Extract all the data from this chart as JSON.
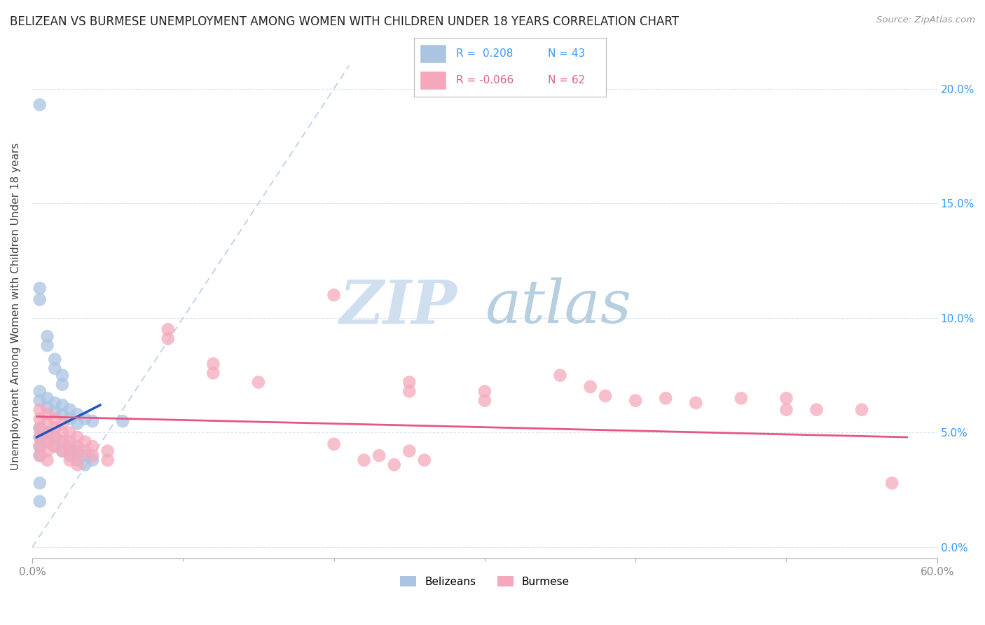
{
  "title": "BELIZEAN VS BURMESE UNEMPLOYMENT AMONG WOMEN WITH CHILDREN UNDER 18 YEARS CORRELATION CHART",
  "source": "Source: ZipAtlas.com",
  "ylabel": "Unemployment Among Women with Children Under 18 years",
  "xlim": [
    0,
    0.6
  ],
  "ylim": [
    -0.005,
    0.215
  ],
  "xticks": [
    0.0,
    0.6
  ],
  "xticklabels": [
    "0.0%",
    "60.0%"
  ],
  "yticks": [
    0.0,
    0.05,
    0.1,
    0.15,
    0.2
  ],
  "yticklabels": [
    "0.0%",
    "5.0%",
    "10.0%",
    "15.0%",
    "20.0%"
  ],
  "belizean_color": "#aac4e2",
  "burmese_color": "#f5a8bc",
  "belizean_line_color": "#2255bb",
  "burmese_line_color": "#e85580",
  "ref_line_color": "#b8cfe8",
  "watermark_zip_color": "#d0dff0",
  "watermark_atlas_color": "#b8cfe0",
  "legend_R1": "R =  0.208",
  "legend_N1": "N = 43",
  "legend_R2": "R = -0.066",
  "legend_N2": "N = 62",
  "belizean_points": [
    [
      0.005,
      0.193
    ],
    [
      0.005,
      0.113
    ],
    [
      0.005,
      0.108
    ],
    [
      0.01,
      0.092
    ],
    [
      0.01,
      0.088
    ],
    [
      0.015,
      0.082
    ],
    [
      0.015,
      0.078
    ],
    [
      0.02,
      0.075
    ],
    [
      0.02,
      0.071
    ],
    [
      0.005,
      0.068
    ],
    [
      0.005,
      0.064
    ],
    [
      0.01,
      0.065
    ],
    [
      0.01,
      0.061
    ],
    [
      0.015,
      0.063
    ],
    [
      0.015,
      0.059
    ],
    [
      0.02,
      0.062
    ],
    [
      0.02,
      0.058
    ],
    [
      0.025,
      0.06
    ],
    [
      0.025,
      0.056
    ],
    [
      0.03,
      0.058
    ],
    [
      0.03,
      0.054
    ],
    [
      0.035,
      0.056
    ],
    [
      0.04,
      0.055
    ],
    [
      0.005,
      0.052
    ],
    [
      0.005,
      0.048
    ],
    [
      0.005,
      0.044
    ],
    [
      0.005,
      0.04
    ],
    [
      0.01,
      0.05
    ],
    [
      0.01,
      0.046
    ],
    [
      0.015,
      0.048
    ],
    [
      0.015,
      0.044
    ],
    [
      0.02,
      0.046
    ],
    [
      0.02,
      0.042
    ],
    [
      0.025,
      0.044
    ],
    [
      0.025,
      0.04
    ],
    [
      0.03,
      0.042
    ],
    [
      0.03,
      0.038
    ],
    [
      0.035,
      0.04
    ],
    [
      0.035,
      0.036
    ],
    [
      0.04,
      0.038
    ],
    [
      0.005,
      0.028
    ],
    [
      0.005,
      0.02
    ],
    [
      0.06,
      0.055
    ]
  ],
  "burmese_points": [
    [
      0.005,
      0.06
    ],
    [
      0.005,
      0.056
    ],
    [
      0.005,
      0.052
    ],
    [
      0.005,
      0.048
    ],
    [
      0.005,
      0.044
    ],
    [
      0.005,
      0.04
    ],
    [
      0.01,
      0.058
    ],
    [
      0.01,
      0.054
    ],
    [
      0.01,
      0.05
    ],
    [
      0.01,
      0.046
    ],
    [
      0.01,
      0.042
    ],
    [
      0.01,
      0.038
    ],
    [
      0.015,
      0.056
    ],
    [
      0.015,
      0.052
    ],
    [
      0.015,
      0.048
    ],
    [
      0.015,
      0.044
    ],
    [
      0.02,
      0.054
    ],
    [
      0.02,
      0.05
    ],
    [
      0.02,
      0.046
    ],
    [
      0.02,
      0.042
    ],
    [
      0.025,
      0.05
    ],
    [
      0.025,
      0.046
    ],
    [
      0.025,
      0.042
    ],
    [
      0.025,
      0.038
    ],
    [
      0.03,
      0.048
    ],
    [
      0.03,
      0.044
    ],
    [
      0.03,
      0.04
    ],
    [
      0.03,
      0.036
    ],
    [
      0.035,
      0.046
    ],
    [
      0.035,
      0.042
    ],
    [
      0.04,
      0.044
    ],
    [
      0.04,
      0.04
    ],
    [
      0.05,
      0.042
    ],
    [
      0.05,
      0.038
    ],
    [
      0.09,
      0.095
    ],
    [
      0.09,
      0.091
    ],
    [
      0.12,
      0.08
    ],
    [
      0.12,
      0.076
    ],
    [
      0.15,
      0.072
    ],
    [
      0.2,
      0.11
    ],
    [
      0.25,
      0.072
    ],
    [
      0.25,
      0.068
    ],
    [
      0.3,
      0.068
    ],
    [
      0.3,
      0.064
    ],
    [
      0.35,
      0.075
    ],
    [
      0.37,
      0.07
    ],
    [
      0.38,
      0.066
    ],
    [
      0.4,
      0.064
    ],
    [
      0.42,
      0.065
    ],
    [
      0.44,
      0.063
    ],
    [
      0.47,
      0.065
    ],
    [
      0.5,
      0.065
    ],
    [
      0.5,
      0.06
    ],
    [
      0.52,
      0.06
    ],
    [
      0.55,
      0.06
    ],
    [
      0.57,
      0.028
    ],
    [
      0.2,
      0.045
    ],
    [
      0.25,
      0.042
    ],
    [
      0.22,
      0.038
    ],
    [
      0.24,
      0.036
    ],
    [
      0.23,
      0.04
    ],
    [
      0.26,
      0.038
    ]
  ],
  "bel_trend_x": [
    0.003,
    0.045
  ],
  "bel_trend_y_start": 0.048,
  "bel_trend_y_end": 0.062,
  "bur_trend_x": [
    0.003,
    0.58
  ],
  "bur_trend_y_start": 0.057,
  "bur_trend_y_end": 0.048
}
